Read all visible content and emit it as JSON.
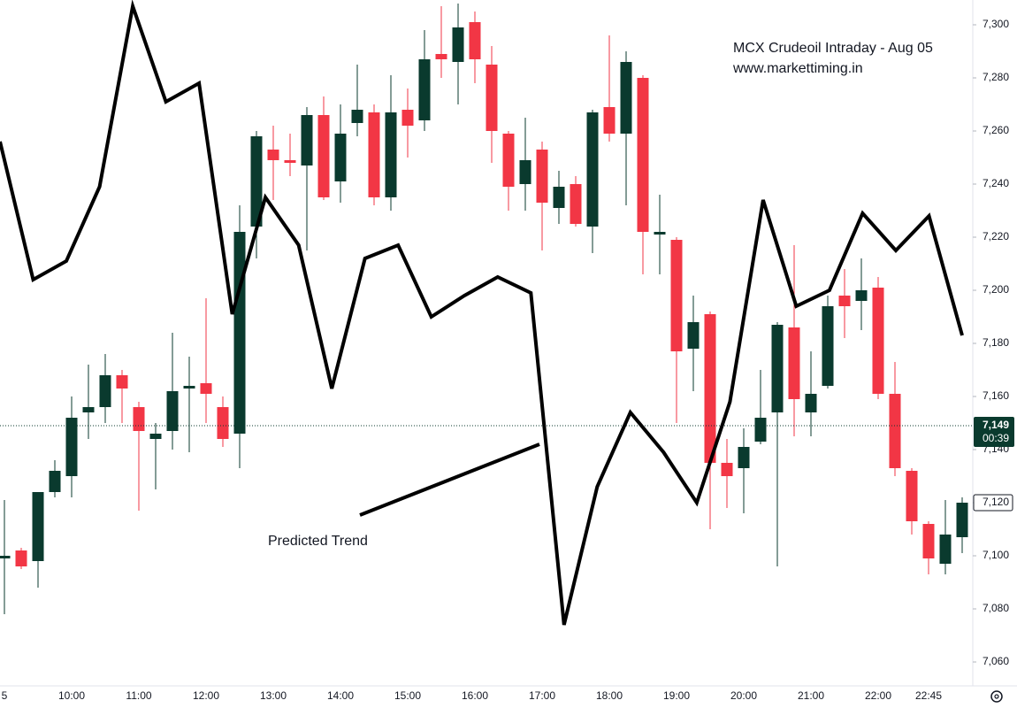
{
  "chart_data": {
    "type": "candlestick",
    "title": "MCX Crudeoil Intraday - Aug 05",
    "subtitle": "www.markettiming.in",
    "annotation": "Predicted Trend",
    "categories": [
      "5",
      null,
      null,
      null,
      "10:00",
      null,
      null,
      null,
      "11:00",
      null,
      null,
      null,
      "12:00",
      null,
      null,
      null,
      "13:00",
      null,
      null,
      null,
      "14:00",
      null,
      null,
      null,
      "15:00",
      null,
      null,
      null,
      "16:00",
      null,
      null,
      null,
      "17:00",
      null,
      null,
      null,
      "18:00",
      null,
      null,
      null,
      "19:00",
      null,
      null,
      null,
      "20:00",
      null,
      null,
      null,
      "21:00",
      null,
      null,
      null,
      "22:00",
      null,
      null,
      "22:45",
      null,
      null
    ],
    "open": [
      7099,
      7102,
      7098,
      7124,
      7130,
      7154,
      7156,
      7168,
      7156,
      7144,
      7147,
      7163,
      7165,
      7156,
      7146,
      7224,
      7253,
      7249,
      7247,
      7266,
      7241,
      7263,
      7267,
      7235,
      7268,
      7264,
      7289,
      7286,
      7301,
      7285,
      7259,
      7240,
      7253,
      7231,
      7240,
      7224,
      7269,
      7259,
      7280,
      7221,
      7219,
      7178,
      7191,
      7135,
      7133,
      7143,
      7154,
      7186,
      7154,
      7164,
      7198,
      7196,
      7201,
      7161,
      7132,
      7112,
      7097,
      7107
    ],
    "high": [
      7121,
      7103,
      7124,
      7136,
      7160,
      7172,
      7176,
      7170,
      7158,
      7150,
      7184,
      7175,
      7197,
      7160,
      7232,
      7260,
      7262,
      7259,
      7269,
      7273,
      7270,
      7285,
      7270,
      7281,
      7276,
      7298,
      7307,
      7308,
      7305,
      7292,
      7260,
      7265,
      7256,
      7245,
      7243,
      7268,
      7296,
      7290,
      7281,
      7236,
      7220,
      7198,
      7192,
      7144,
      7148,
      7170,
      7188,
      7217,
      7177,
      7198,
      7208,
      7212,
      7205,
      7173,
      7133,
      7113,
      7121,
      7122
    ],
    "low": [
      7078,
      7095,
      7088,
      7122,
      7122,
      7144,
      7150,
      7150,
      7117,
      7125,
      7140,
      7139,
      7150,
      7141,
      7133,
      7212,
      7234,
      7243,
      7215,
      7234,
      7233,
      7258,
      7232,
      7230,
      7250,
      7260,
      7280,
      7270,
      7278,
      7248,
      7230,
      7230,
      7215,
      7225,
      7224,
      7214,
      7256,
      7232,
      7206,
      7206,
      7150,
      7162,
      7110,
      7118,
      7116,
      7142,
      7096,
      7145,
      7145,
      7163,
      7182,
      7185,
      7159,
      7130,
      7108,
      7093,
      7093,
      7101
    ],
    "close": [
      7100,
      7096,
      7124,
      7132,
      7152,
      7156,
      7168,
      7163,
      7147,
      7146,
      7162,
      7164,
      7161,
      7144,
      7222,
      7258,
      7249,
      7248,
      7266,
      7235,
      7259,
      7268,
      7235,
      7267,
      7262,
      7287,
      7287,
      7299,
      7287,
      7260,
      7239,
      7249,
      7233,
      7239,
      7225,
      7267,
      7259,
      7286,
      7222,
      7222,
      7177,
      7188,
      7135,
      7130,
      7141,
      7152,
      7187,
      7159,
      7161,
      7194,
      7194,
      7200,
      7161,
      7133,
      7113,
      7099,
      7108,
      7120
    ],
    "up_color": "#0a3a2e",
    "down_color": "#f23645",
    "trend_line": {
      "color": "#000000",
      "values": [
        7256,
        7204,
        7211,
        7239,
        7307,
        7271,
        7278,
        7191,
        7235,
        7217,
        7163,
        7212,
        7217,
        7190,
        7198,
        7205,
        7199,
        7074,
        7126,
        7154,
        7139,
        7120,
        7158,
        7234,
        7194,
        7200,
        7229,
        7215,
        7228,
        7183
      ]
    },
    "last_price": {
      "value": 7149,
      "label": "7,149"
    },
    "countdown": "00:39",
    "price_marker": {
      "value": 7120,
      "label": "7,120"
    },
    "ylim": [
      7052,
      7308
    ],
    "yticks": [
      {
        "value": 7060,
        "label": "7,060"
      },
      {
        "value": 7080,
        "label": "7,080"
      },
      {
        "value": 7100,
        "label": "7,100"
      },
      {
        "value": 7120,
        "label": "7,120"
      },
      {
        "value": 7140,
        "label": "7,140"
      },
      {
        "value": 7160,
        "label": "7,160"
      },
      {
        "value": 7180,
        "label": "7,180"
      },
      {
        "value": 7200,
        "label": "7,200"
      },
      {
        "value": 7220,
        "label": "7,220"
      },
      {
        "value": 7240,
        "label": "7,240"
      },
      {
        "value": 7260,
        "label": "7,260"
      },
      {
        "value": 7280,
        "label": "7,280"
      },
      {
        "value": 7300,
        "label": "7,300"
      }
    ],
    "grid": false
  }
}
